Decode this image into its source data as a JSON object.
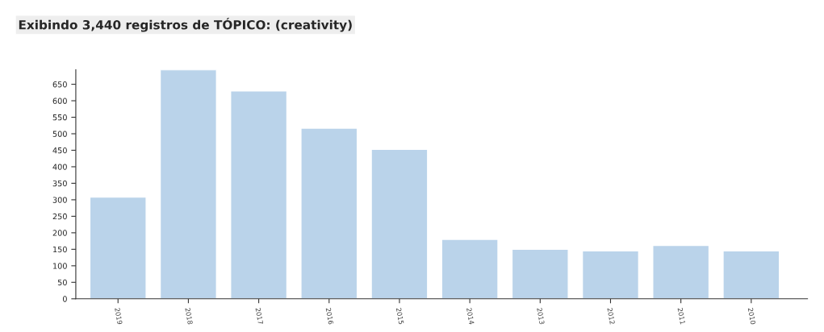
{
  "chart_data": {
    "type": "bar",
    "title": "Exibindo 3,440 registros de TÓPICO: (creativity)",
    "categories": [
      "2019",
      "2018",
      "2017",
      "2016",
      "2015",
      "2014",
      "2013",
      "2012",
      "2011",
      "2010"
    ],
    "values": [
      308,
      694,
      630,
      517,
      453,
      180,
      150,
      145,
      162,
      145
    ],
    "color": "#bad3ea",
    "ylim": [
      0,
      694
    ],
    "yticks": [
      0,
      50,
      100,
      150,
      200,
      250,
      300,
      350,
      400,
      450,
      500,
      550,
      600,
      650
    ],
    "grid": false,
    "legend": false
  }
}
